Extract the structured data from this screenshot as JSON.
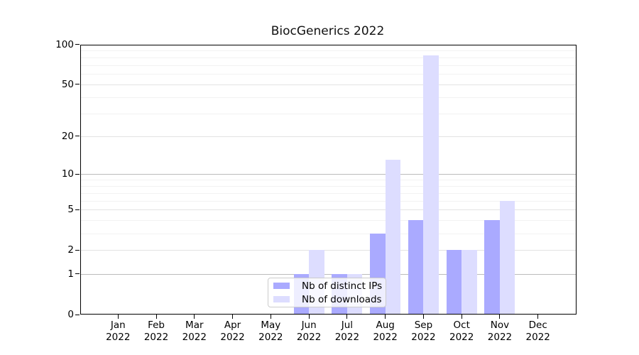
{
  "chart_data": {
    "type": "bar",
    "title": "BiocGenerics 2022",
    "year": "2022",
    "categories": [
      "Jan",
      "Feb",
      "Mar",
      "Apr",
      "May",
      "Jun",
      "Jul",
      "Aug",
      "Sep",
      "Oct",
      "Nov",
      "Dec"
    ],
    "series": [
      {
        "name": "Nb of distinct IPs",
        "key": "distinct-ips",
        "color": "#aaaaff",
        "values": [
          0,
          0,
          0,
          0,
          0,
          1,
          1,
          3,
          4,
          2,
          4,
          0
        ]
      },
      {
        "name": "Nb of downloads",
        "key": "downloads",
        "color": "#ddddff",
        "values": [
          0,
          0,
          0,
          0,
          0,
          2,
          1,
          13,
          83,
          2,
          6,
          0
        ]
      }
    ],
    "yscale": "log1p",
    "ylim": [
      0,
      100
    ],
    "yticks": [
      0,
      1,
      2,
      5,
      10,
      20,
      50,
      100
    ],
    "gridlines": {
      "major": [
        1,
        10,
        100
      ],
      "mid": [
        2,
        5,
        20,
        50
      ],
      "minor": [
        3,
        4,
        6,
        7,
        8,
        9,
        30,
        40,
        60,
        70,
        80,
        90
      ]
    },
    "legend": {
      "position": "lower-center"
    },
    "colors": {
      "grid_major": "#bbbbbb",
      "grid_mid": "#e3e3e3",
      "grid_minor": "#f2f2f2",
      "spine": "#000000",
      "text": "#000000"
    }
  }
}
